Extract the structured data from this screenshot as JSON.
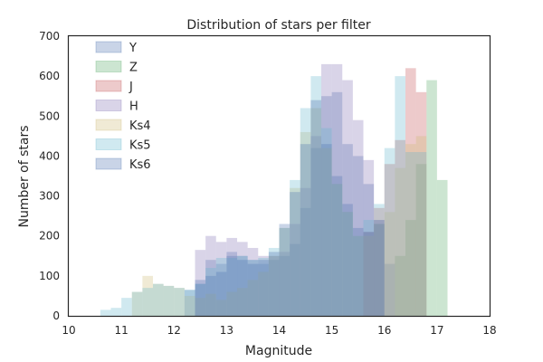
{
  "chart_data": {
    "type": "area",
    "title": "Distribution of stars per filter",
    "xlabel": "Magnitude",
    "ylabel": "Number of stars",
    "xlim": [
      10,
      18
    ],
    "ylim": [
      0,
      700
    ],
    "xticks": [
      "10",
      "11",
      "12",
      "13",
      "14",
      "15",
      "16",
      "17",
      "18"
    ],
    "yticks": [
      "0",
      "100",
      "200",
      "300",
      "400",
      "500",
      "600",
      "700"
    ],
    "grid": false,
    "legend_position": "top-left",
    "series": [
      {
        "name": "Y",
        "color": "#4C72B0",
        "bins": [
          [
            12.2,
            12.4,
            65
          ],
          [
            12.4,
            12.6,
            80
          ],
          [
            12.6,
            12.8,
            140
          ],
          [
            12.8,
            13.0,
            130
          ],
          [
            13.0,
            13.2,
            160
          ],
          [
            13.2,
            13.4,
            150
          ],
          [
            13.4,
            13.6,
            140
          ],
          [
            13.6,
            13.8,
            130
          ],
          [
            13.8,
            14.0,
            140
          ],
          [
            14.0,
            14.2,
            150
          ],
          [
            14.2,
            14.4,
            180
          ],
          [
            14.4,
            14.6,
            270
          ],
          [
            14.6,
            14.8,
            420
          ],
          [
            14.8,
            15.0,
            550
          ],
          [
            15.0,
            15.2,
            560
          ],
          [
            15.2,
            15.4,
            430
          ],
          [
            15.4,
            15.6,
            400
          ],
          [
            15.6,
            15.8,
            330
          ],
          [
            15.8,
            16.0,
            240
          ],
          [
            16.0,
            16.2,
            130
          ]
        ]
      },
      {
        "name": "Z",
        "color": "#55A868",
        "bins": [
          [
            16.2,
            16.4,
            150
          ],
          [
            16.4,
            16.6,
            240
          ],
          [
            16.6,
            16.8,
            380
          ],
          [
            16.8,
            17.0,
            590
          ],
          [
            17.0,
            17.2,
            340
          ],
          [
            17.2,
            17.4,
            0
          ]
        ]
      },
      {
        "name": "J",
        "color": "#C44E52",
        "bins": [
          [
            15.6,
            15.8,
            210
          ],
          [
            15.8,
            16.0,
            270
          ],
          [
            16.0,
            16.2,
            380
          ],
          [
            16.2,
            16.4,
            440
          ],
          [
            16.4,
            16.6,
            620
          ],
          [
            16.6,
            16.8,
            560
          ]
        ]
      },
      {
        "name": "H",
        "color": "#8172B2",
        "bins": [
          [
            12.4,
            12.6,
            165
          ],
          [
            12.6,
            12.8,
            200
          ],
          [
            12.8,
            13.0,
            185
          ],
          [
            13.0,
            13.2,
            195
          ],
          [
            13.2,
            13.4,
            185
          ],
          [
            13.4,
            13.6,
            170
          ],
          [
            13.6,
            13.8,
            150
          ],
          [
            13.8,
            14.0,
            150
          ],
          [
            14.0,
            14.2,
            160
          ],
          [
            14.2,
            14.4,
            230
          ],
          [
            14.4,
            14.6,
            320
          ],
          [
            14.6,
            14.8,
            450
          ],
          [
            14.8,
            15.0,
            630
          ],
          [
            15.0,
            15.2,
            630
          ],
          [
            15.2,
            15.4,
            590
          ],
          [
            15.4,
            15.6,
            490
          ],
          [
            15.6,
            15.8,
            390
          ],
          [
            15.8,
            16.0,
            240
          ]
        ]
      },
      {
        "name": "Ks4",
        "color": "#CCB974",
        "bins": [
          [
            11.2,
            11.4,
            60
          ],
          [
            11.4,
            11.6,
            100
          ],
          [
            11.6,
            11.8,
            80
          ],
          [
            11.8,
            12.0,
            75
          ],
          [
            12.0,
            12.2,
            70
          ],
          [
            12.2,
            12.4,
            50
          ],
          [
            12.4,
            12.6,
            45
          ],
          [
            12.6,
            12.8,
            55
          ],
          [
            12.8,
            13.0,
            40
          ],
          [
            13.0,
            13.2,
            60
          ],
          [
            13.2,
            13.4,
            70
          ],
          [
            13.4,
            13.6,
            90
          ],
          [
            13.6,
            13.8,
            110
          ],
          [
            13.8,
            14.0,
            150
          ],
          [
            14.0,
            14.2,
            220
          ],
          [
            14.2,
            14.4,
            320
          ],
          [
            14.4,
            14.6,
            460
          ],
          [
            14.6,
            14.8,
            520
          ],
          [
            14.8,
            15.0,
            420
          ],
          [
            15.0,
            15.2,
            330
          ],
          [
            15.2,
            15.4,
            260
          ],
          [
            15.4,
            15.6,
            200
          ],
          [
            15.6,
            15.8,
            200
          ],
          [
            15.8,
            16.0,
            230
          ],
          [
            16.0,
            16.2,
            260
          ],
          [
            16.2,
            16.4,
            370
          ],
          [
            16.4,
            16.6,
            430
          ],
          [
            16.6,
            16.8,
            450
          ]
        ]
      },
      {
        "name": "Ks5",
        "color": "#64B5CD",
        "bins": [
          [
            10.6,
            10.8,
            15
          ],
          [
            10.8,
            11.0,
            20
          ],
          [
            11.0,
            11.2,
            45
          ],
          [
            11.2,
            11.4,
            60
          ],
          [
            11.4,
            11.6,
            70
          ],
          [
            11.6,
            11.8,
            80
          ],
          [
            11.8,
            12.0,
            75
          ],
          [
            12.0,
            12.2,
            70
          ],
          [
            12.2,
            12.4,
            65
          ],
          [
            12.4,
            12.6,
            80
          ],
          [
            12.6,
            12.8,
            120
          ],
          [
            12.8,
            13.0,
            145
          ],
          [
            13.0,
            13.2,
            145
          ],
          [
            13.2,
            13.4,
            150
          ],
          [
            13.4,
            13.6,
            140
          ],
          [
            13.6,
            13.8,
            145
          ],
          [
            13.8,
            14.0,
            170
          ],
          [
            14.0,
            14.2,
            220
          ],
          [
            14.2,
            14.4,
            340
          ],
          [
            14.4,
            14.6,
            520
          ],
          [
            14.6,
            14.8,
            600
          ],
          [
            14.8,
            15.0,
            470
          ],
          [
            15.0,
            15.2,
            330
          ],
          [
            15.2,
            15.4,
            260
          ],
          [
            15.4,
            15.6,
            200
          ],
          [
            15.6,
            15.8,
            240
          ],
          [
            15.8,
            16.0,
            280
          ],
          [
            16.0,
            16.2,
            420
          ],
          [
            16.2,
            16.4,
            600
          ],
          [
            16.4,
            16.6,
            410
          ],
          [
            16.6,
            16.8,
            410
          ]
        ]
      },
      {
        "name": "Ks6",
        "color": "#4C72B0",
        "bins": [
          [
            12.4,
            12.6,
            90
          ],
          [
            12.6,
            12.8,
            100
          ],
          [
            12.8,
            13.0,
            110
          ],
          [
            13.0,
            13.2,
            150
          ],
          [
            13.2,
            13.4,
            140
          ],
          [
            13.4,
            13.6,
            130
          ],
          [
            13.6,
            13.8,
            140
          ],
          [
            13.8,
            14.0,
            160
          ],
          [
            14.0,
            14.2,
            230
          ],
          [
            14.2,
            14.4,
            310
          ],
          [
            14.4,
            14.6,
            430
          ],
          [
            14.6,
            14.8,
            540
          ],
          [
            14.8,
            15.0,
            430
          ],
          [
            15.0,
            15.2,
            350
          ],
          [
            15.2,
            15.4,
            280
          ],
          [
            15.4,
            15.6,
            220
          ],
          [
            15.6,
            15.8,
            210
          ],
          [
            15.8,
            16.0,
            230
          ]
        ]
      }
    ]
  }
}
